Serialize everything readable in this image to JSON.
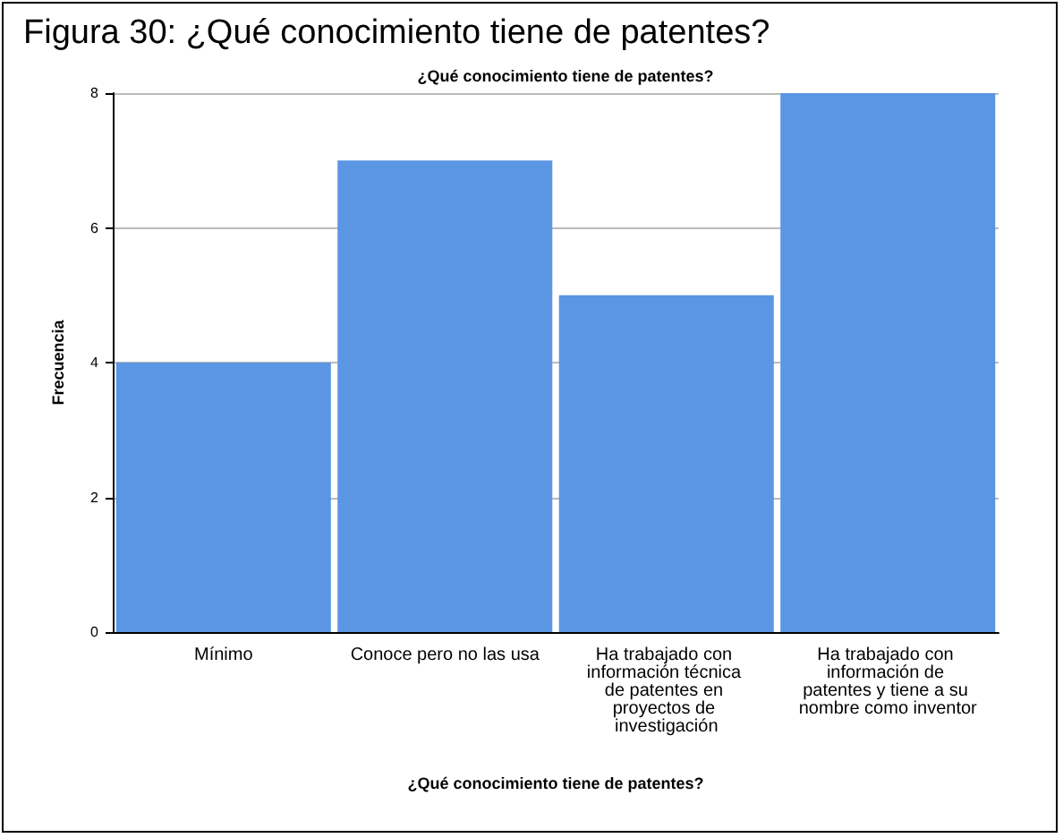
{
  "chart_data": {
    "type": "bar",
    "title": "Figura 30: ¿Qué conocimiento tiene de patentes?",
    "subtitle": "¿Qué conocimiento tiene de patentes?",
    "xlabel": "¿Qué conocimiento tiene de patentes?",
    "ylabel": "Frecuencia",
    "categories": [
      "Mínimo",
      "Conoce pero no las usa",
      "Ha trabajado con información técnica de patentes en proyectos de investigación",
      "Ha trabajado con información de patentes y tiene a su nombre como inventor"
    ],
    "values": [
      4,
      7,
      5,
      8
    ],
    "color": "#5a96e3",
    "ylim": [
      0,
      8
    ],
    "yticks": [
      0,
      2,
      4,
      6,
      8
    ],
    "grid": "y"
  }
}
